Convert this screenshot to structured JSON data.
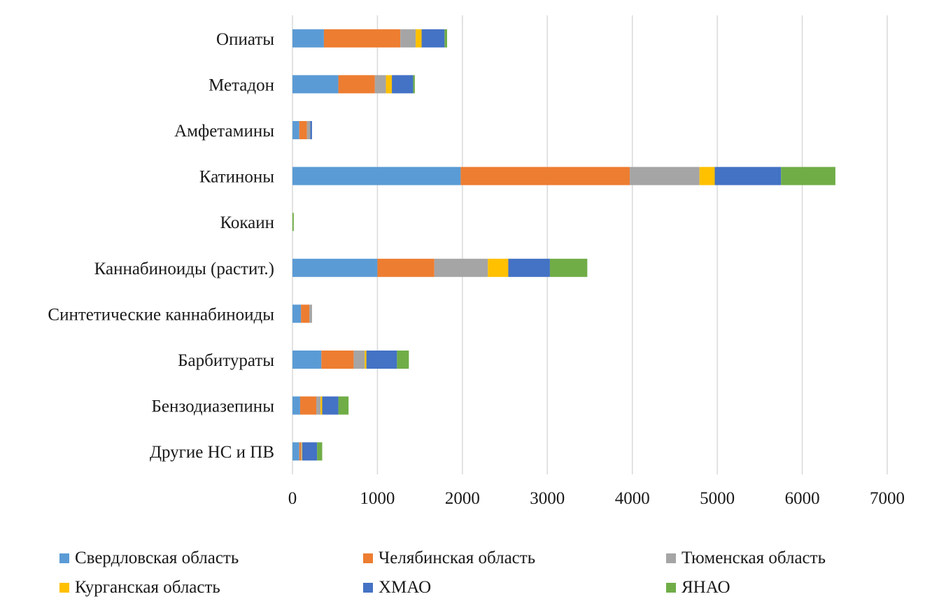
{
  "chart_data": {
    "type": "bar",
    "orientation": "horizontal",
    "stacked": true,
    "title": "",
    "xlabel": "",
    "ylabel": "",
    "xlim": [
      0,
      7000
    ],
    "xticks": [
      0,
      1000,
      2000,
      3000,
      4000,
      5000,
      6000,
      7000
    ],
    "grid": "vertical",
    "legend_position": "bottom",
    "categories": [
      "Опиаты",
      "Метадон",
      "Амфетамины",
      "Катиноны",
      "Кокаин",
      "Каннабиноиды (растит.)",
      "Синтетические каннабиноиды",
      "Барбитураты",
      "Бензодиазепины",
      "Другие НС и ПВ"
    ],
    "series": [
      {
        "name": "Свердловская область",
        "color": "#5B9BD5",
        "values": [
          370,
          540,
          80,
          1980,
          0,
          1000,
          100,
          340,
          90,
          80
        ]
      },
      {
        "name": "Челябинская область",
        "color": "#ED7D31",
        "values": [
          900,
          430,
          90,
          1990,
          0,
          670,
          100,
          380,
          190,
          20
        ]
      },
      {
        "name": "Тюменская область",
        "color": "#A5A5A5",
        "values": [
          180,
          130,
          40,
          820,
          0,
          630,
          30,
          130,
          50,
          10
        ]
      },
      {
        "name": "Курганская область",
        "color": "#FFC000",
        "values": [
          70,
          70,
          0,
          180,
          0,
          240,
          0,
          20,
          20,
          5
        ]
      },
      {
        "name": "ХМАО",
        "color": "#4472C4",
        "values": [
          270,
          250,
          20,
          780,
          0,
          490,
          0,
          360,
          190,
          175
        ]
      },
      {
        "name": "ЯНАО",
        "color": "#70AD47",
        "values": [
          30,
          20,
          0,
          640,
          15,
          440,
          0,
          140,
          120,
          60
        ]
      }
    ]
  }
}
